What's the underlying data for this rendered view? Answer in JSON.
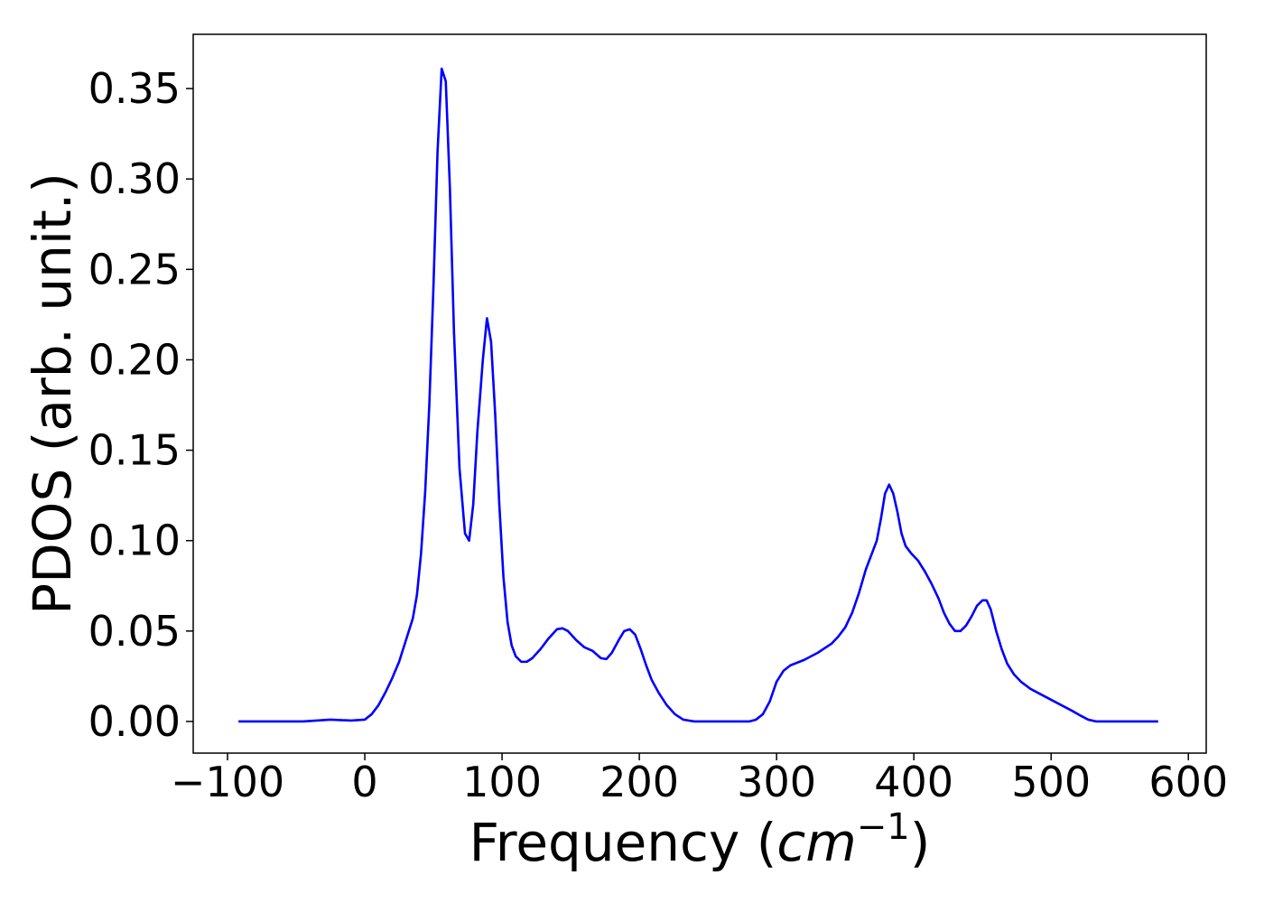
{
  "chart_data": {
    "type": "line",
    "x_label": [
      "Frequency (",
      "cm",
      "−1",
      ")"
    ],
    "y_label": "PDOS (arb. unit.)",
    "color": "#0000ff",
    "grid": false,
    "xlim": [
      -125,
      613
    ],
    "ylim": [
      -0.0175,
      0.38
    ],
    "xticks": [
      {
        "value": -100,
        "label": "−100"
      },
      0,
      100,
      200,
      300,
      400,
      500,
      600
    ],
    "yticks": [
      {
        "value": 0,
        "label": "0.00"
      },
      {
        "value": 0.05,
        "label": "0.05"
      },
      {
        "value": 0.1,
        "label": "0.10"
      },
      {
        "value": 0.15,
        "label": "0.15"
      },
      {
        "value": 0.2,
        "label": "0.20"
      },
      {
        "value": 0.25,
        "label": "0.25"
      },
      {
        "value": 0.3,
        "label": "0.30"
      },
      {
        "value": 0.35,
        "label": "0.35"
      }
    ],
    "x": [
      -92,
      -45,
      -25,
      -10,
      0,
      5,
      10,
      15,
      20,
      25,
      30,
      35,
      38,
      41,
      44,
      47,
      50,
      53,
      56,
      59,
      62,
      65,
      69,
      73,
      76,
      79,
      82,
      86,
      89,
      92,
      95,
      98,
      101,
      104,
      107,
      110,
      114,
      118,
      122,
      128,
      134,
      140,
      144,
      148,
      154,
      160,
      166,
      172,
      176,
      180,
      185,
      189,
      193,
      197,
      201,
      205,
      209,
      214,
      220,
      226,
      232,
      240,
      280,
      285,
      290,
      295,
      300,
      305,
      310,
      320,
      330,
      340,
      345,
      350,
      355,
      360,
      365,
      370,
      373,
      376,
      379,
      382,
      385,
      388,
      391,
      394,
      398,
      403,
      408,
      413,
      418,
      422,
      426,
      430,
      434,
      438,
      442,
      446,
      450,
      453,
      456,
      460,
      464,
      468,
      473,
      478,
      485,
      495,
      505,
      515,
      522,
      527,
      533,
      578
    ],
    "values": [
      0,
      0,
      0.001,
      0.0005,
      0.001,
      0.004,
      0.009,
      0.016,
      0.024,
      0.033,
      0.045,
      0.057,
      0.07,
      0.093,
      0.127,
      0.175,
      0.24,
      0.315,
      0.361,
      0.354,
      0.295,
      0.215,
      0.14,
      0.104,
      0.1,
      0.12,
      0.16,
      0.2,
      0.223,
      0.21,
      0.17,
      0.12,
      0.08,
      0.055,
      0.042,
      0.036,
      0.033,
      0.033,
      0.035,
      0.04,
      0.046,
      0.051,
      0.0515,
      0.05,
      0.045,
      0.041,
      0.039,
      0.035,
      0.0345,
      0.038,
      0.045,
      0.05,
      0.051,
      0.048,
      0.04,
      0.031,
      0.023,
      0.016,
      0.009,
      0.004,
      0.001,
      0,
      0,
      0.001,
      0.004,
      0.011,
      0.022,
      0.028,
      0.031,
      0.034,
      0.038,
      0.043,
      0.047,
      0.052,
      0.06,
      0.071,
      0.084,
      0.094,
      0.1,
      0.112,
      0.126,
      0.131,
      0.126,
      0.116,
      0.104,
      0.097,
      0.093,
      0.089,
      0.083,
      0.076,
      0.068,
      0.06,
      0.054,
      0.05,
      0.05,
      0.053,
      0.058,
      0.064,
      0.067,
      0.067,
      0.062,
      0.05,
      0.04,
      0.032,
      0.026,
      0.022,
      0.018,
      0.014,
      0.01,
      0.006,
      0.003,
      0.001,
      0,
      0
    ]
  }
}
